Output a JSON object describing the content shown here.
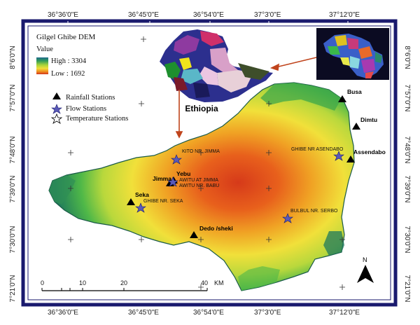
{
  "map": {
    "legend": {
      "title": "Gilgel Ghibe DEM",
      "value_label": "Value",
      "high_label": "High : 3304",
      "low_label": "Low : 1692",
      "rainfall_label": "Rainfall Stations",
      "flow_label": "Flow Stations",
      "temperature_label": "Temperature Stations"
    },
    "inset_country_label": "Ethiopia",
    "north_label": "N",
    "scale": {
      "ticks": [
        "0",
        "10",
        "20",
        "40"
      ],
      "unit": "KM"
    },
    "x_coords_top": [
      "36°36'0\"E",
      "36°45'0\"E",
      "36°54'0\"E",
      "37°3'0\"E",
      "37°12'0\"E"
    ],
    "x_coords_bottom": [
      "36°36'0\"E",
      "36°45'0\"E",
      "36°54'0\"E",
      "37°3'0\"E",
      "37°12'0\"E"
    ],
    "y_coords_left": [
      "8°6'0\"N",
      "7°57'0\"N",
      "7°48'0\"N",
      "7°39'0\"N",
      "7°30'0\"N",
      "7°21'0\"N"
    ],
    "y_coords_right": [
      "8°6'0\"N",
      "7°57'0\"N",
      "7°48'0\"N",
      "7°39'0\"N",
      "7°30'0\"N",
      "7°21'0\"N"
    ],
    "rainfall_stations": [
      "Busa",
      "Dimtu",
      "Assendabo",
      "Jimma",
      "Yebu",
      "Seka",
      "Dedo /sheki"
    ],
    "flow_stations": [
      "KITO NR. JIMMA",
      "GHIBE NR ASENDABO",
      "AWITU AT JIMMA",
      "AWITU NR. BABU",
      "GHIBE NR. SEKA",
      "BULBUL NR. SERBO"
    ],
    "colors": {
      "high": "#1f7a5c",
      "mid_green": "#4fb848",
      "yellow": "#f2e23a",
      "orange": "#ee8a1f",
      "red": "#d9361b",
      "low": "#c8bde6",
      "frame": "#1a1a6e"
    }
  }
}
